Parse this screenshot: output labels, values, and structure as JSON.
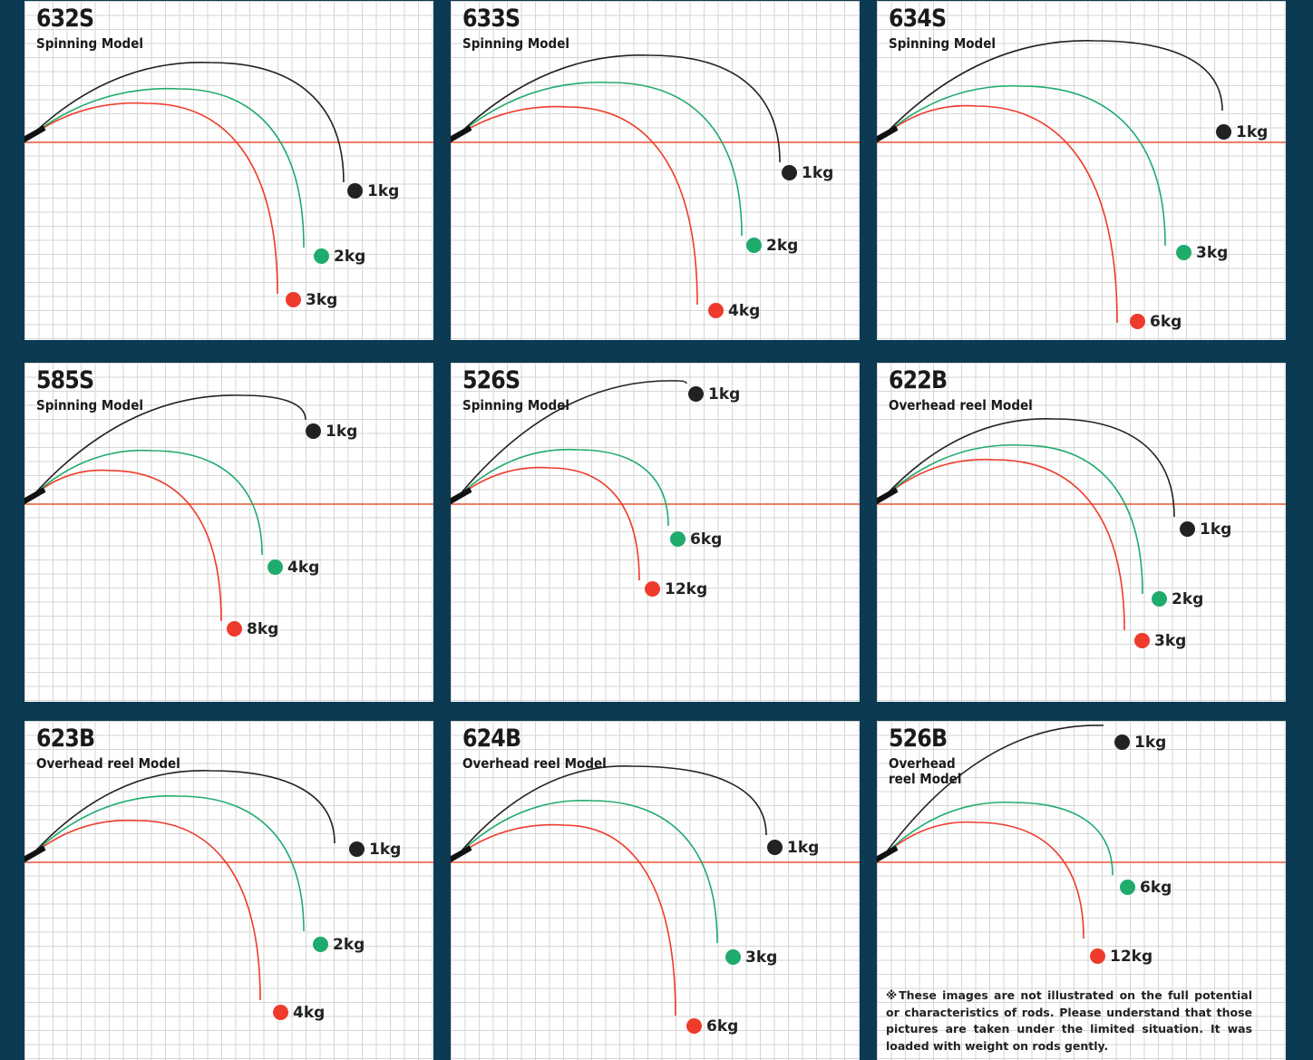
{
  "colors": {
    "background": "#0b3a52",
    "baseline": "#ee5a3c",
    "black": "#222222",
    "green": "#1fab6c",
    "red": "#ee3b2b"
  },
  "panels": [
    {
      "model": "632S",
      "subtitle": "Spinning Model",
      "weights": [
        {
          "label": "1kg",
          "color": "black",
          "tip": [
            352,
            200
          ],
          "dot": [
            364,
            210
          ],
          "apex": [
            205,
            68
          ]
        },
        {
          "label": "2kg",
          "color": "green",
          "tip": [
            308,
            272
          ],
          "dot": [
            327,
            282
          ],
          "apex": [
            170,
            97
          ]
        },
        {
          "label": "3kg",
          "color": "red",
          "tip": [
            279,
            323
          ],
          "dot": [
            296,
            330
          ],
          "apex": [
            135,
            113
          ]
        }
      ]
    },
    {
      "model": "633S",
      "subtitle": "Spinning Model",
      "weights": [
        {
          "label": "1kg",
          "color": "black",
          "tip": [
            363,
            178
          ],
          "dot": [
            373,
            190
          ],
          "apex": [
            220,
            60
          ]
        },
        {
          "label": "2kg",
          "color": "green",
          "tip": [
            321,
            259
          ],
          "dot": [
            334,
            270
          ],
          "apex": [
            175,
            90
          ]
        },
        {
          "label": "4kg",
          "color": "red",
          "tip": [
            272,
            335
          ],
          "dot": [
            292,
            342
          ],
          "apex": [
            130,
            117
          ]
        }
      ]
    },
    {
      "model": "634S",
      "subtitle": "Spinning Model",
      "weights": [
        {
          "label": "1kg",
          "color": "black",
          "tip": [
            381,
            121
          ],
          "dot": [
            382,
            145
          ],
          "apex": [
            240,
            44
          ]
        },
        {
          "label": "3kg",
          "color": "green",
          "tip": [
            318,
            270
          ],
          "dot": [
            338,
            278
          ],
          "apex": [
            160,
            94
          ]
        },
        {
          "label": "6kg",
          "color": "red",
          "tip": [
            265,
            355
          ],
          "dot": [
            287,
            354
          ],
          "apex": [
            110,
            116
          ]
        }
      ]
    },
    {
      "model": "585S",
      "subtitle": "Spinning Model",
      "weights": [
        {
          "label": "1kg",
          "color": "black",
          "tip": [
            310,
            63
          ],
          "dot": [
            318,
            76
          ],
          "apex": [
            240,
            36
          ]
        },
        {
          "label": "4kg",
          "color": "green",
          "tip": [
            262,
            212
          ],
          "dot": [
            276,
            226
          ],
          "apex": [
            140,
            97
          ]
        },
        {
          "label": "8kg",
          "color": "red",
          "tip": [
            217,
            285
          ],
          "dot": [
            231,
            294
          ],
          "apex": [
            95,
            119
          ]
        }
      ]
    },
    {
      "model": "526S",
      "subtitle": "Spinning Model",
      "weights": [
        {
          "label": "1kg",
          "color": "black",
          "tip": [
            260,
            23
          ],
          "dot": [
            270,
            35
          ],
          "apex": [
            250,
            20
          ]
        },
        {
          "label": "6kg",
          "color": "green",
          "tip": [
            240,
            180
          ],
          "dot": [
            250,
            195
          ],
          "apex": [
            140,
            96
          ]
        },
        {
          "label": "12kg",
          "color": "red",
          "tip": [
            208,
            240
          ],
          "dot": [
            222,
            250
          ],
          "apex": [
            110,
            116
          ]
        }
      ]
    },
    {
      "model": "622B",
      "subtitle": "Overhead reel Model",
      "weights": [
        {
          "label": "1kg",
          "color": "black",
          "tip": [
            328,
            170
          ],
          "dot": [
            342,
            184
          ],
          "apex": [
            195,
            62
          ]
        },
        {
          "label": "2kg",
          "color": "green",
          "tip": [
            293,
            255
          ],
          "dot": [
            311,
            261
          ],
          "apex": [
            160,
            91
          ]
        },
        {
          "label": "3kg",
          "color": "red",
          "tip": [
            273,
            295
          ],
          "dot": [
            292,
            307
          ],
          "apex": [
            130,
            107
          ]
        }
      ]
    },
    {
      "model": "623B",
      "subtitle": "Overhead reel Model",
      "weights": [
        {
          "label": "1kg",
          "color": "black",
          "tip": [
            342,
            135
          ],
          "dot": [
            366,
            142
          ],
          "apex": [
            205,
            55
          ]
        },
        {
          "label": "2kg",
          "color": "green",
          "tip": [
            308,
            232
          ],
          "dot": [
            326,
            247
          ],
          "apex": [
            170,
            83
          ]
        },
        {
          "label": "4kg",
          "color": "red",
          "tip": [
            260,
            308
          ],
          "dot": [
            282,
            322
          ],
          "apex": [
            125,
            110
          ]
        }
      ]
    },
    {
      "model": "624B",
      "subtitle": "Overhead reel Model",
      "weights": [
        {
          "label": "1kg",
          "color": "black",
          "tip": [
            348,
            126
          ],
          "dot": [
            357,
            140
          ],
          "apex": [
            200,
            50
          ]
        },
        {
          "label": "3kg",
          "color": "green",
          "tip": [
            294,
            245
          ],
          "dot": [
            311,
            261
          ],
          "apex": [
            155,
            88
          ]
        },
        {
          "label": "6kg",
          "color": "red",
          "tip": [
            248,
            325
          ],
          "dot": [
            268,
            337
          ],
          "apex": [
            125,
            115
          ]
        }
      ]
    },
    {
      "model": "526B",
      "subtitle": "Overhead\nreel Model",
      "weights": [
        {
          "label": "1kg",
          "color": "black",
          "tip": [
            250,
            5
          ],
          "dot": [
            270,
            24
          ],
          "apex": [
            250,
            5
          ]
        },
        {
          "label": "6kg",
          "color": "green",
          "tip": [
            260,
            170
          ],
          "dot": [
            276,
            184
          ],
          "apex": [
            150,
            90
          ]
        },
        {
          "label": "12kg",
          "color": "red",
          "tip": [
            228,
            240
          ],
          "dot": [
            243,
            260
          ],
          "apex": [
            110,
            112
          ]
        }
      ]
    }
  ],
  "note": "※These images are not illustrated on the full potential or characteristics of rods. Please understand that those pictures are taken under the limited situation. It was loaded with weight on rods gently."
}
